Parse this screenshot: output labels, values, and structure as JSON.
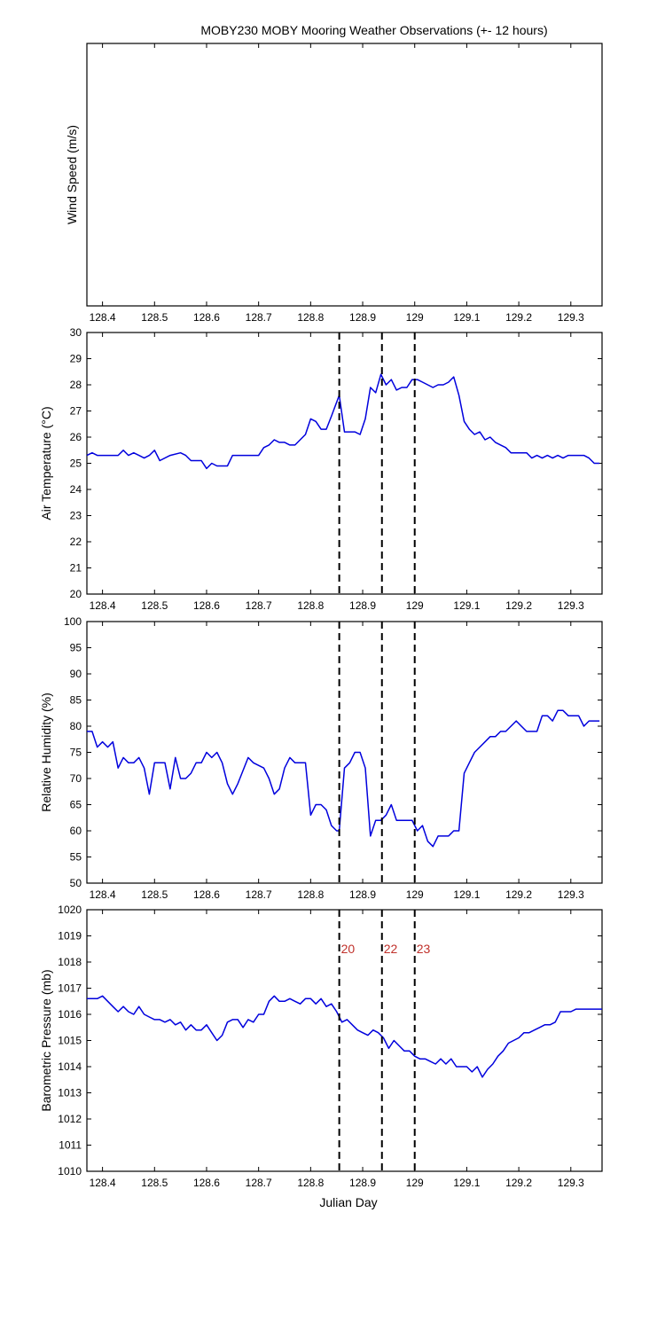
{
  "figure": {
    "title": "MOBY230 MOBY Mooring Weather Observations (+- 12 hours)",
    "xlabel": "Julian Day",
    "line_color": "#0000dd",
    "event_line_color": "#000000",
    "event_label_color": "#c0302a"
  },
  "chart_data": [
    {
      "type": "line",
      "ylabel": "Wind Speed (m/s)",
      "xlim": [
        128.37,
        129.36
      ],
      "ylim": null,
      "x_ticks": [
        128.4,
        128.5,
        128.6,
        128.7,
        128.8,
        128.9,
        129,
        129.1,
        129.2,
        129.3
      ],
      "y_ticks": [],
      "x_tick_labels": [
        "128.4",
        "128.5",
        "128.6",
        "128.7",
        "128.8",
        "128.9",
        "129",
        "129.1",
        "129.2",
        "129.3"
      ],
      "y_tick_labels": [],
      "series": [],
      "event_lines": []
    },
    {
      "type": "line",
      "ylabel": "Air Temperature (°C)",
      "xlim": [
        128.37,
        129.36
      ],
      "ylim": [
        20,
        30
      ],
      "x_ticks": [
        128.4,
        128.5,
        128.6,
        128.7,
        128.8,
        128.9,
        129,
        129.1,
        129.2,
        129.3
      ],
      "y_ticks": [
        20,
        21,
        22,
        23,
        24,
        25,
        26,
        27,
        28,
        29,
        30
      ],
      "x_tick_labels": [
        "128.4",
        "128.5",
        "128.6",
        "128.7",
        "128.8",
        "128.9",
        "129",
        "129.1",
        "129.2",
        "129.3"
      ],
      "y_tick_labels": [
        "20",
        "21",
        "22",
        "23",
        "24",
        "25",
        "26",
        "27",
        "28",
        "29",
        "30"
      ],
      "series": [
        {
          "x": [
            128.37,
            128.38,
            128.39,
            128.41,
            128.43,
            128.44,
            128.45,
            128.46,
            128.47,
            128.48,
            128.49,
            128.5,
            128.51,
            128.53,
            128.55,
            128.56,
            128.57,
            128.59,
            128.6,
            128.61,
            128.62,
            128.64,
            128.65,
            128.67,
            128.69,
            128.7,
            128.71,
            128.72,
            128.73,
            128.74,
            128.75,
            128.76,
            128.77,
            128.79,
            128.8,
            128.81,
            128.82,
            128.83,
            128.84,
            128.855,
            128.865,
            128.875,
            128.885,
            128.895,
            128.905,
            128.915,
            128.925,
            128.935,
            128.945,
            128.955,
            128.965,
            128.975,
            128.985,
            128.995,
            129.005,
            129.015,
            129.025,
            129.035,
            129.045,
            129.055,
            129.065,
            129.075,
            129.085,
            129.095,
            129.105,
            129.115,
            129.125,
            129.135,
            129.145,
            129.155,
            129.165,
            129.175,
            129.185,
            129.195,
            129.205,
            129.215,
            129.225,
            129.235,
            129.245,
            129.255,
            129.265,
            129.275,
            129.285,
            129.295,
            129.305,
            129.315,
            129.325,
            129.335,
            129.345,
            129.355
          ],
          "y": [
            25.3,
            25.4,
            25.3,
            25.3,
            25.3,
            25.5,
            25.3,
            25.4,
            25.3,
            25.2,
            25.3,
            25.5,
            25.1,
            25.3,
            25.4,
            25.3,
            25.1,
            25.1,
            24.8,
            25.0,
            24.9,
            24.9,
            25.3,
            25.3,
            25.3,
            25.3,
            25.6,
            25.7,
            25.9,
            25.8,
            25.8,
            25.7,
            25.7,
            26.1,
            26.7,
            26.6,
            26.3,
            26.3,
            26.8,
            27.6,
            26.2,
            26.2,
            26.2,
            26.1,
            26.7,
            27.9,
            27.7,
            28.4,
            28.0,
            28.2,
            27.8,
            27.9,
            27.9,
            28.2,
            28.2,
            28.1,
            28.0,
            27.9,
            28.0,
            28.0,
            28.1,
            28.3,
            27.6,
            26.6,
            26.3,
            26.1,
            26.2,
            25.9,
            26.0,
            25.8,
            25.7,
            25.6,
            25.4,
            25.4,
            25.4,
            25.4,
            25.2,
            25.3,
            25.2,
            25.3,
            25.2,
            25.3,
            25.2,
            25.3,
            25.3,
            25.3,
            25.3,
            25.2,
            25.0,
            25.0
          ]
        }
      ],
      "event_lines": [
        128.855,
        128.937,
        129.0
      ]
    },
    {
      "type": "line",
      "ylabel": "Relative Humidity (%)",
      "xlim": [
        128.37,
        129.36
      ],
      "ylim": [
        50,
        100
      ],
      "x_ticks": [
        128.4,
        128.5,
        128.6,
        128.7,
        128.8,
        128.9,
        129,
        129.1,
        129.2,
        129.3
      ],
      "y_ticks": [
        50,
        55,
        60,
        65,
        70,
        75,
        80,
        85,
        90,
        95,
        100
      ],
      "x_tick_labels": [
        "128.4",
        "128.5",
        "128.6",
        "128.7",
        "128.8",
        "128.9",
        "129",
        "129.1",
        "129.2",
        "129.3"
      ],
      "y_tick_labels": [
        "50",
        "55",
        "60",
        "65",
        "70",
        "75",
        "80",
        "85",
        "90",
        "95",
        "100"
      ],
      "series": [
        {
          "x": [
            128.37,
            128.38,
            128.39,
            128.4,
            128.41,
            128.42,
            128.43,
            128.44,
            128.45,
            128.46,
            128.47,
            128.48,
            128.49,
            128.5,
            128.52,
            128.53,
            128.54,
            128.55,
            128.56,
            128.57,
            128.58,
            128.59,
            128.6,
            128.61,
            128.62,
            128.63,
            128.64,
            128.65,
            128.66,
            128.68,
            128.69,
            128.71,
            128.72,
            128.73,
            128.74,
            128.75,
            128.76,
            128.77,
            128.78,
            128.79,
            128.8,
            128.81,
            128.82,
            128.83,
            128.84,
            128.85,
            128.855,
            128.865,
            128.875,
            128.885,
            128.895,
            128.905,
            128.915,
            128.925,
            128.935,
            128.945,
            128.955,
            128.965,
            128.975,
            128.985,
            128.995,
            129.005,
            129.015,
            129.025,
            129.035,
            129.045,
            129.055,
            129.065,
            129.075,
            129.085,
            129.095,
            129.105,
            129.115,
            129.125,
            129.135,
            129.145,
            129.155,
            129.165,
            129.175,
            129.185,
            129.195,
            129.205,
            129.215,
            129.225,
            129.235,
            129.245,
            129.255,
            129.265,
            129.275,
            129.285,
            129.295,
            129.305,
            129.315,
            129.325,
            129.335,
            129.345,
            129.355
          ],
          "y": [
            79,
            79,
            76,
            77,
            76,
            77,
            72,
            74,
            73,
            73,
            74,
            72,
            67,
            73,
            73,
            68,
            74,
            70,
            70,
            71,
            73,
            73,
            75,
            74,
            75,
            73,
            69,
            67,
            69,
            74,
            73,
            72,
            70,
            67,
            68,
            72,
            74,
            73,
            73,
            73,
            63,
            65,
            65,
            64,
            61,
            60,
            60,
            72,
            73,
            75,
            75,
            72,
            59,
            62,
            62,
            63,
            65,
            62,
            62,
            62,
            62,
            60,
            61,
            58,
            57,
            59,
            59,
            59,
            60,
            60,
            71,
            73,
            75,
            76,
            77,
            78,
            78,
            79,
            79,
            80,
            81,
            80,
            79,
            79,
            79,
            82,
            82,
            81,
            83,
            83,
            82,
            82,
            82,
            80,
            81,
            81,
            81
          ]
        }
      ],
      "event_lines": [
        128.855,
        128.937,
        129.0
      ]
    },
    {
      "type": "line",
      "ylabel": "Barometric Pressure (mb)",
      "xlim": [
        128.37,
        129.36
      ],
      "ylim": [
        1010,
        1020
      ],
      "x_ticks": [
        128.4,
        128.5,
        128.6,
        128.7,
        128.8,
        128.9,
        129,
        129.1,
        129.2,
        129.3
      ],
      "y_ticks": [
        1010,
        1011,
        1012,
        1013,
        1014,
        1015,
        1016,
        1017,
        1018,
        1019,
        1020
      ],
      "x_tick_labels": [
        "128.4",
        "128.5",
        "128.6",
        "128.7",
        "128.8",
        "128.9",
        "129",
        "129.1",
        "129.2",
        "129.3"
      ],
      "y_tick_labels": [
        "1010",
        "1011",
        "1012",
        "1013",
        "1014",
        "1015",
        "1016",
        "1017",
        "1018",
        "1019",
        "1020"
      ],
      "series": [
        {
          "x": [
            128.37,
            128.38,
            128.39,
            128.4,
            128.41,
            128.42,
            128.43,
            128.44,
            128.45,
            128.46,
            128.47,
            128.48,
            128.49,
            128.5,
            128.51,
            128.52,
            128.53,
            128.54,
            128.55,
            128.56,
            128.57,
            128.58,
            128.59,
            128.6,
            128.61,
            128.62,
            128.63,
            128.64,
            128.65,
            128.66,
            128.67,
            128.68,
            128.69,
            128.7,
            128.71,
            128.72,
            128.73,
            128.74,
            128.75,
            128.76,
            128.77,
            128.78,
            128.79,
            128.8,
            128.81,
            128.82,
            128.83,
            128.84,
            128.85,
            128.86,
            128.87,
            128.88,
            128.89,
            128.9,
            128.91,
            128.92,
            128.93,
            128.94,
            128.95,
            128.96,
            128.97,
            128.98,
            128.99,
            129.0,
            129.01,
            129.02,
            129.03,
            129.04,
            129.05,
            129.06,
            129.07,
            129.08,
            129.09,
            129.1,
            129.11,
            129.12,
            129.13,
            129.14,
            129.15,
            129.16,
            129.17,
            129.18,
            129.19,
            129.2,
            129.21,
            129.22,
            129.23,
            129.24,
            129.25,
            129.26,
            129.27,
            129.28,
            129.29,
            129.3,
            129.31,
            129.32,
            129.33,
            129.34,
            129.35,
            129.36
          ],
          "y": [
            1016.6,
            1016.6,
            1016.6,
            1016.7,
            1016.5,
            1016.3,
            1016.1,
            1016.3,
            1016.1,
            1016.0,
            1016.3,
            1016.0,
            1015.9,
            1015.8,
            1015.8,
            1015.7,
            1015.8,
            1015.6,
            1015.7,
            1015.4,
            1015.6,
            1015.4,
            1015.4,
            1015.6,
            1015.3,
            1015.0,
            1015.2,
            1015.7,
            1015.8,
            1015.8,
            1015.5,
            1015.8,
            1015.7,
            1016.0,
            1016.0,
            1016.5,
            1016.7,
            1016.5,
            1016.5,
            1016.6,
            1016.5,
            1016.4,
            1016.6,
            1016.6,
            1016.4,
            1016.6,
            1016.3,
            1016.4,
            1016.1,
            1015.7,
            1015.8,
            1015.6,
            1015.4,
            1015.3,
            1015.2,
            1015.4,
            1015.3,
            1015.1,
            1014.7,
            1015.0,
            1014.8,
            1014.6,
            1014.6,
            1014.4,
            1014.3,
            1014.3,
            1014.2,
            1014.1,
            1014.3,
            1014.1,
            1014.3,
            1014.0,
            1014.0,
            1014.0,
            1013.8,
            1014.0,
            1013.6,
            1013.9,
            1014.1,
            1014.4,
            1014.6,
            1014.9,
            1015.0,
            1015.1,
            1015.3,
            1015.3,
            1015.4,
            1015.5,
            1015.6,
            1015.6,
            1015.7,
            1016.1,
            1016.1,
            1016.1,
            1016.2,
            1016.2,
            1016.2,
            1016.2,
            1016.2,
            1016.2
          ],
          "_note": "final values plotted near right edge"
        }
      ],
      "event_lines": [
        128.855,
        128.937,
        129.0
      ],
      "event_labels": [
        "20",
        "22",
        "23"
      ]
    }
  ]
}
